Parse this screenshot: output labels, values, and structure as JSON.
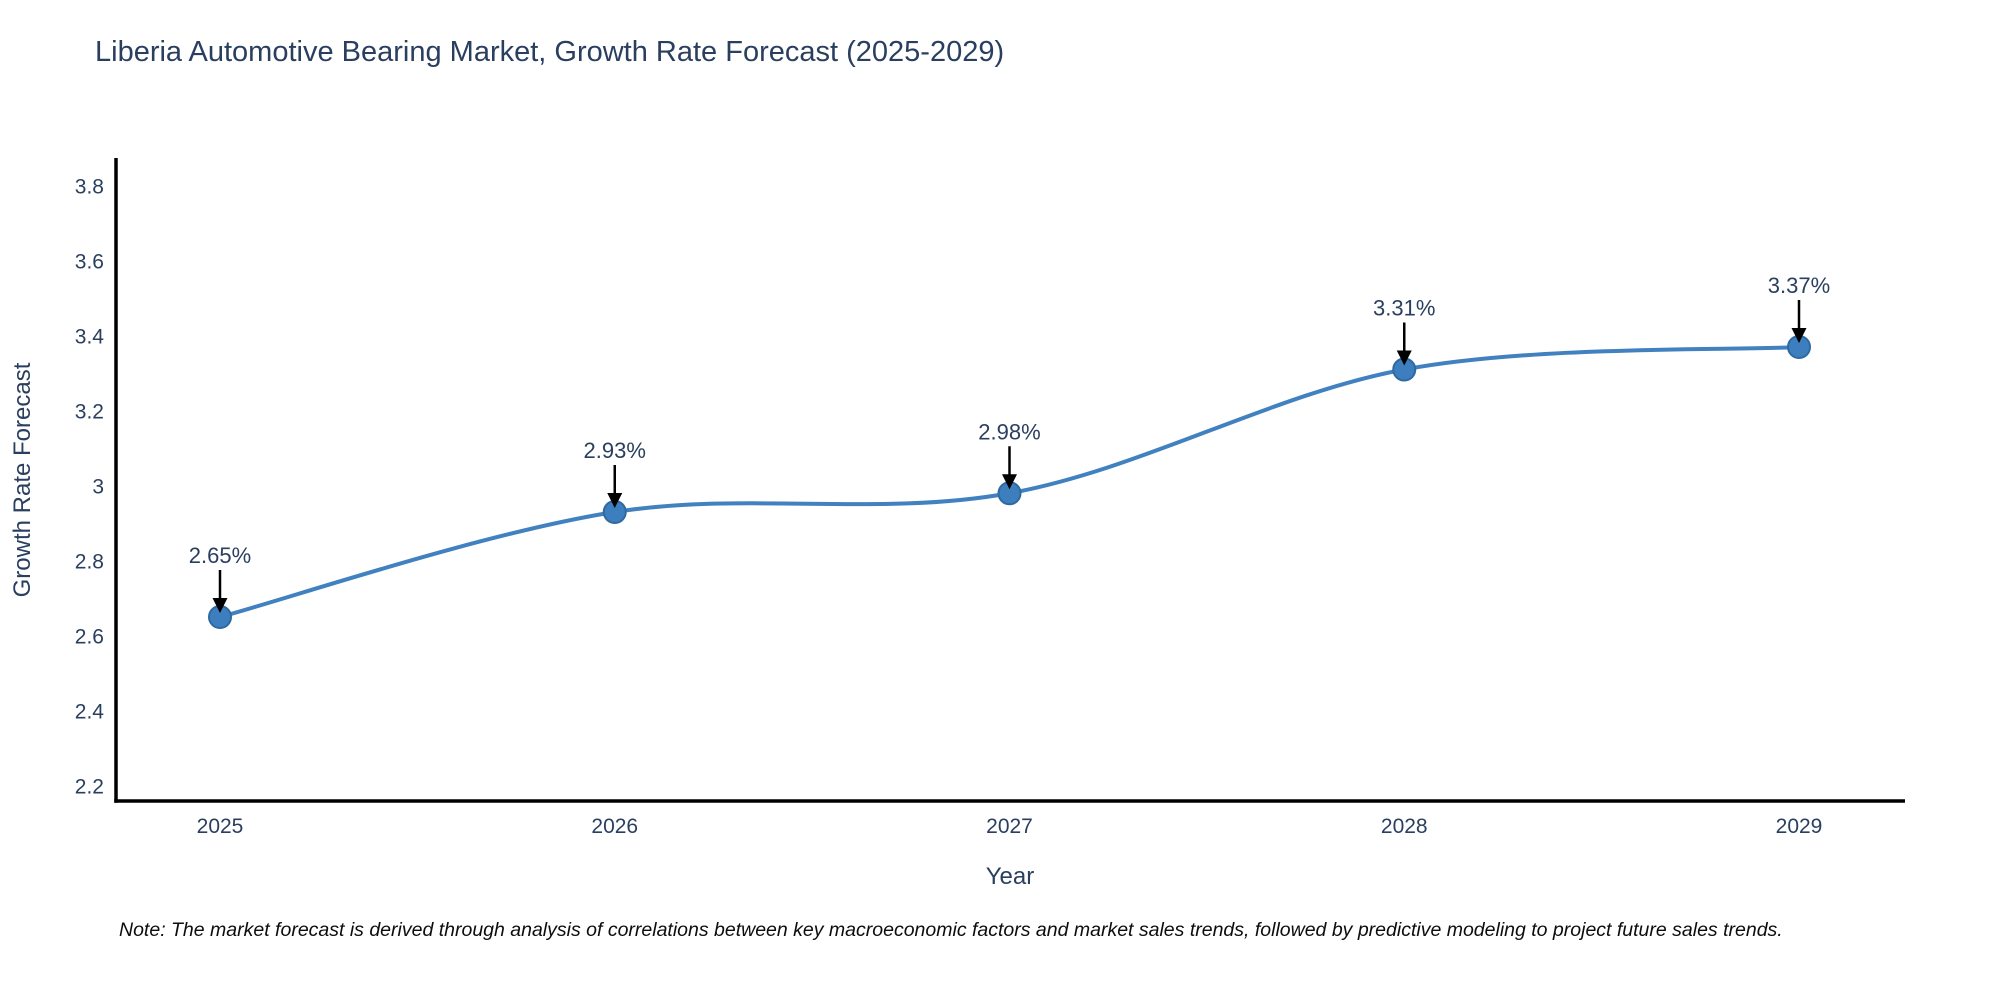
{
  "page": {
    "background": "#ffffff"
  },
  "chart_data": {
    "type": "line",
    "title": "Liberia Automotive Bearing Market, Growth Rate Forecast (2025-2029)",
    "xlabel": "Year",
    "ylabel": "Growth Rate Forecast",
    "x": [
      2025,
      2026,
      2027,
      2028,
      2029
    ],
    "xtick_labels": [
      "2025",
      "2026",
      "2027",
      "2028",
      "2029"
    ],
    "series": [
      {
        "name": "Growth Rate Forecast",
        "values": [
          2.65,
          2.93,
          2.98,
          3.31,
          3.37
        ],
        "point_labels": [
          "2.65%",
          "2.93%",
          "2.98%",
          "3.31%",
          "3.37%"
        ]
      }
    ],
    "yticks": [
      2.2,
      2.4,
      2.6,
      2.8,
      3,
      3.2,
      3.4,
      3.6,
      3.8
    ],
    "ytick_labels": [
      "2.2",
      "2.4",
      "2.6",
      "2.8",
      "3",
      "3.2",
      "3.4",
      "3.6",
      "3.8"
    ],
    "ylim": [
      2.16,
      3.88
    ],
    "grid": false,
    "legend_position": "none",
    "line_shape": "spline",
    "annotations_have_arrows": true,
    "colors": {
      "line": "#4181c0",
      "marker_fill": "#3d7ebf",
      "marker_edge": "#2f699f",
      "annotation_arrow": "#000000",
      "axis_line": "#000000",
      "text": "#2a3f5f"
    }
  },
  "footnote": "Note: The market forecast is derived through analysis of correlations between key macroeconomic factors and market sales trends, followed by predictive modeling to project future sales trends."
}
